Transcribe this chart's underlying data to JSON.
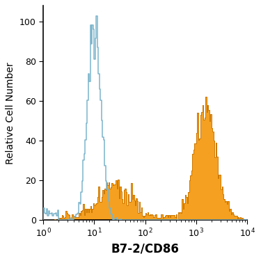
{
  "title": "",
  "xlabel": "B7-2/CD86",
  "ylabel": "Relative Cell Number",
  "xlim_log": [
    1,
    10000
  ],
  "ylim": [
    0,
    108
  ],
  "yticks": [
    0,
    20,
    40,
    60,
    80,
    100
  ],
  "background_color": "#ffffff",
  "blue_color": "#7ab4cc",
  "orange_fill_color": "#f5a020",
  "orange_edge_color": "#cc7700",
  "xlabel_fontsize": 12,
  "xlabel_fontweight": "bold",
  "ylabel_fontsize": 10,
  "tick_fontsize": 9,
  "figsize": [
    3.75,
    3.75
  ],
  "dpi": 100
}
